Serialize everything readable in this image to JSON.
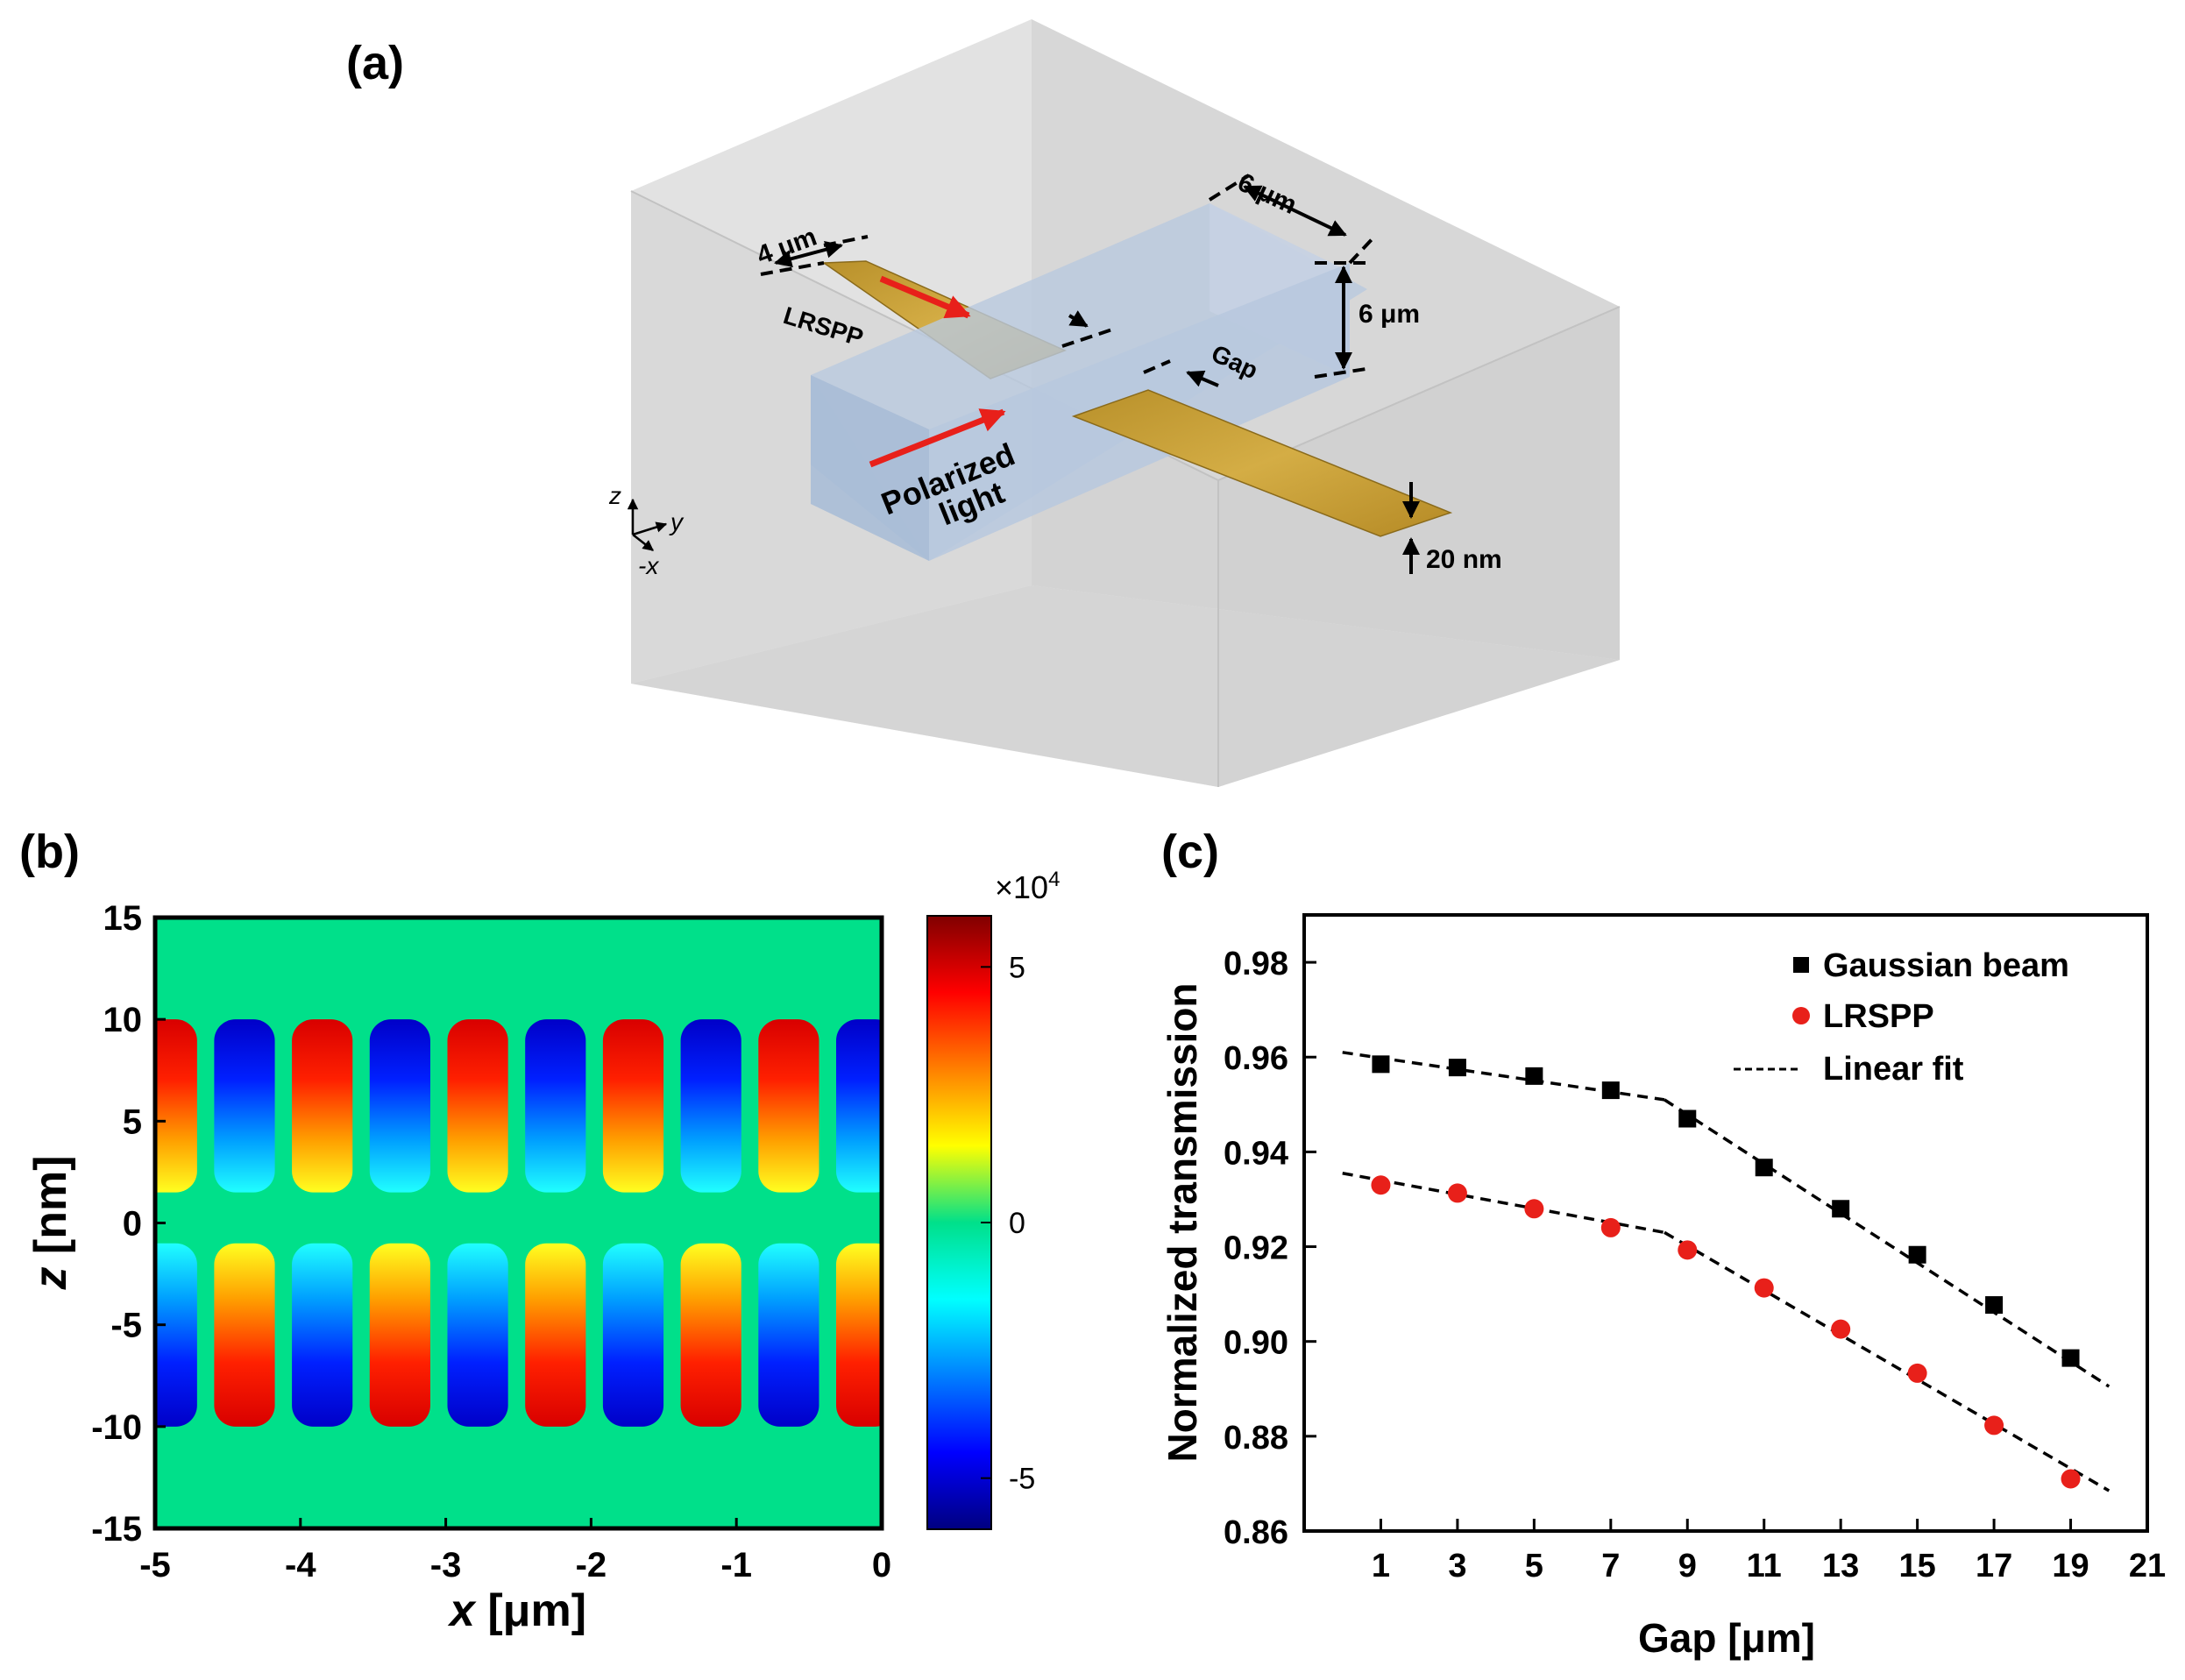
{
  "panel_a": {
    "label": "(a)",
    "dim_width_strip": "4 μm",
    "label_lrspp": "LRSPP",
    "dim_box_width": "6 μm",
    "dim_box_height": "6 μm",
    "label_gap": "Gap",
    "label_polarized": "Polarized",
    "label_light": "light",
    "dim_thickness": "20 nm",
    "axis_z": "z",
    "axis_y": "y",
    "axis_x": "-x",
    "colors": {
      "box": "#d9d9d9",
      "waveguide": "#b8c8dc",
      "gold": "#c9a032",
      "arrow": "#e8201a"
    }
  },
  "chart_data": [
    {
      "type": "heatmap",
      "panel_label": "(b)",
      "xlabel_var": "x",
      "xlabel_unit": " [μm]",
      "ylabel_var": "z",
      "ylabel_unit": " [nm]",
      "xlim": [
        -5,
        0
      ],
      "ylim": [
        -15,
        15
      ],
      "x_ticks": [
        "-5",
        "-4",
        "-3",
        "-2",
        "-1",
        "0"
      ],
      "y_ticks": [
        "15",
        "10",
        "5",
        "0",
        "-5",
        "-10",
        "-15"
      ],
      "field_region": [
        -10,
        10
      ],
      "field_period_um": 1.07,
      "colorbar": {
        "multiplier": "×10",
        "exponent": "4",
        "range": [
          -6,
          6
        ],
        "ticks": [
          "5",
          "0",
          "-5"
        ],
        "tick_values": [
          5,
          0,
          -5
        ]
      }
    },
    {
      "type": "scatter",
      "panel_label": "(c)",
      "xlabel": "Gap [μm]",
      "ylabel": "Normalized transmission",
      "xlim": [
        -1,
        21
      ],
      "ylim": [
        0.86,
        0.99
      ],
      "x_ticks": [
        "1",
        "3",
        "5",
        "7",
        "9",
        "11",
        "13",
        "15",
        "17",
        "19",
        "21"
      ],
      "y_ticks": [
        "0.86",
        "0.88",
        "0.90",
        "0.92",
        "0.94",
        "0.96",
        "0.98"
      ],
      "x": [
        1,
        3,
        5,
        7,
        9,
        11,
        13,
        15,
        17,
        19
      ],
      "series": [
        {
          "name": "Gaussian beam",
          "marker": "square",
          "color": "#000000",
          "values": [
            0.9585,
            0.9578,
            0.956,
            0.953,
            0.947,
            0.9367,
            0.928,
            0.9183,
            0.9077,
            0.8965
          ]
        },
        {
          "name": "LRSPP",
          "marker": "circle",
          "color": "#e8201a",
          "values": [
            0.933,
            0.9313,
            0.928,
            0.924,
            0.9193,
            0.9113,
            0.9026,
            0.8933,
            0.8823,
            0.871
          ]
        }
      ],
      "fits": [
        {
          "name": "Linear fit",
          "segments": [
            [
              [
                0,
                0.961
              ],
              [
                8.4,
                0.951
              ]
            ],
            [
              [
                8.4,
                0.951
              ],
              [
                20,
                0.8905
              ]
            ]
          ]
        },
        {
          "name": "Linear fit",
          "segments": [
            [
              [
                0,
                0.9355
              ],
              [
                8.4,
                0.923
              ]
            ],
            [
              [
                8.4,
                0.923
              ],
              [
                20,
                0.8685
              ]
            ]
          ]
        }
      ],
      "legend": {
        "entries": [
          "Gaussian beam",
          "LRSPP",
          "Linear fit"
        ],
        "position": "top-right"
      }
    }
  ]
}
